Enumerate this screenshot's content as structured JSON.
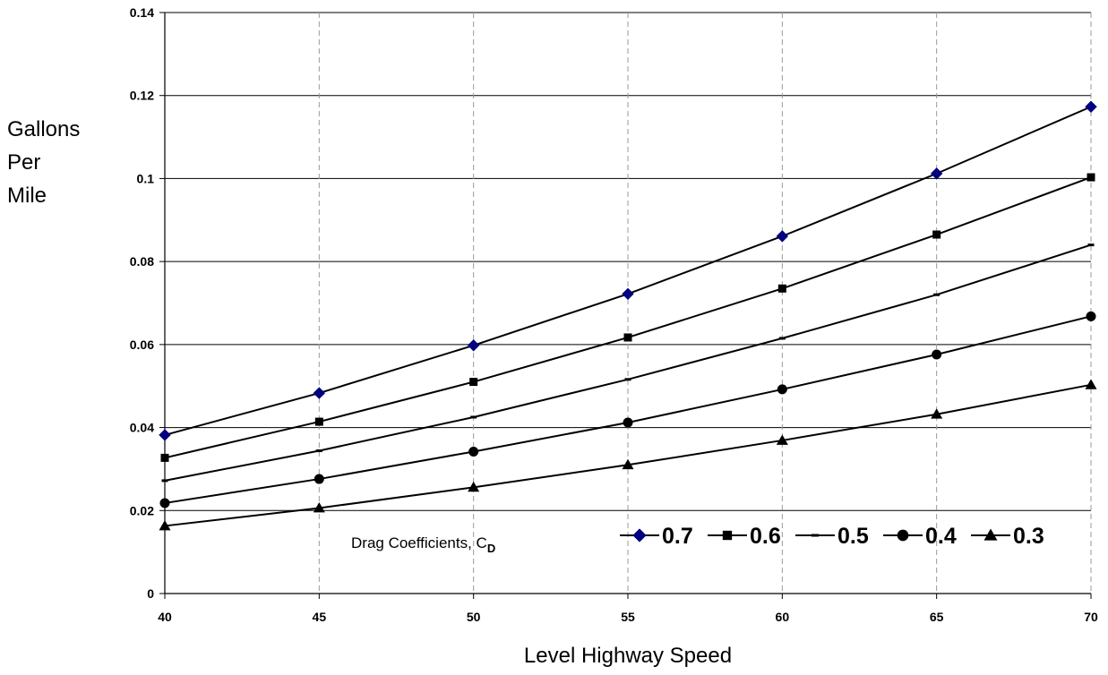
{
  "chart_data": {
    "type": "line",
    "xlabel": "Level Highway Speed",
    "ylabel": "Gallons Per Mile",
    "ylabel_lines": [
      "Gallons",
      "Per",
      "Mile"
    ],
    "x": [
      40,
      45,
      50,
      55,
      60,
      65,
      70
    ],
    "x_tick_labels": [
      "40",
      "45",
      "50",
      "55",
      "60",
      "65",
      "70"
    ],
    "xlim": [
      40,
      70
    ],
    "ylim": [
      0,
      0.14
    ],
    "y_ticks": [
      0,
      0.02,
      0.04,
      0.06,
      0.08,
      0.1,
      0.12,
      0.14
    ],
    "y_tick_labels": [
      "0",
      "0.02",
      "0.04",
      "0.06",
      "0.08",
      "0.1",
      "0.12",
      "0.14"
    ],
    "grid": {
      "horizontal": true,
      "vertical": "dashed"
    },
    "legend_position": "bottom-right",
    "annotation": {
      "text": "Drag Coefficients, C",
      "subscript": "D"
    },
    "series": [
      {
        "name": "0.7",
        "marker": "diamond",
        "color": "#000080",
        "values": [
          0.0382,
          0.0483,
          0.0598,
          0.0722,
          0.0861,
          0.1012,
          0.1173
        ]
      },
      {
        "name": "0.6",
        "marker": "square",
        "color": "#000000",
        "values": [
          0.0327,
          0.0414,
          0.051,
          0.0617,
          0.0735,
          0.0865,
          0.1003
        ]
      },
      {
        "name": "0.5",
        "marker": "dash",
        "color": "#000000",
        "values": [
          0.0272,
          0.0344,
          0.0425,
          0.0516,
          0.0615,
          0.072,
          0.084
        ]
      },
      {
        "name": "0.4",
        "marker": "circle",
        "color": "#000000",
        "values": [
          0.0218,
          0.0276,
          0.0342,
          0.0412,
          0.0492,
          0.0576,
          0.0668
        ]
      },
      {
        "name": "0.3",
        "marker": "triangle",
        "color": "#000000",
        "values": [
          0.0163,
          0.0206,
          0.0256,
          0.031,
          0.0369,
          0.0432,
          0.0503
        ]
      }
    ]
  }
}
